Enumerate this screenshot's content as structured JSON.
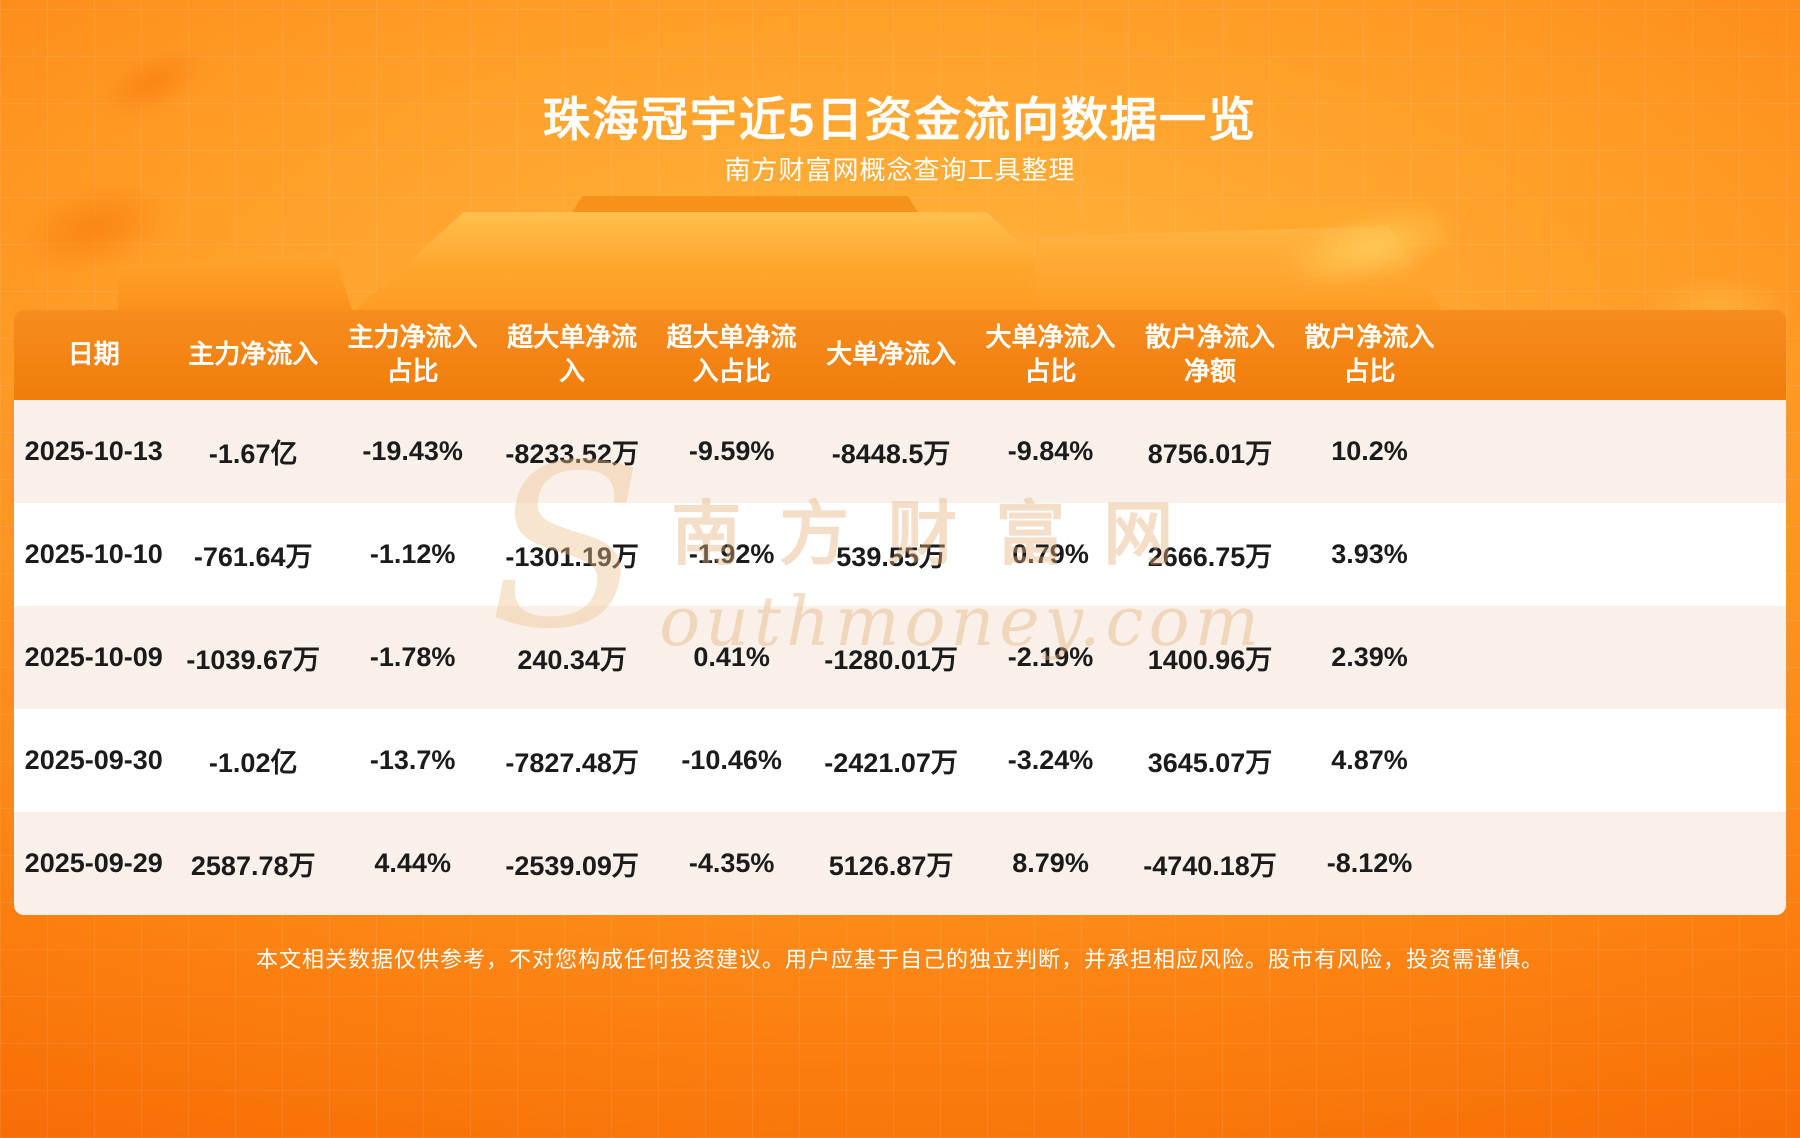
{
  "page": {
    "title": "珠海冠宇近5日资金流向数据一览",
    "subtitle": "南方财富网概念查询工具整理",
    "disclaimer": "本文相关数据仅供参考，不对您构成任何投资建议。用户应基于自己的独立判断，并承担相应风险。股市有风险，投资需谨慎。",
    "watermark": {
      "initial": "S",
      "cn": "南方财富网",
      "en": "outhmoney.com"
    }
  },
  "colors": {
    "background_orange": "#fb7e0f",
    "background_deep_orange": "#f25c00",
    "podium_orange": "#ffa52d",
    "header_orange": "#f28212",
    "row_cream": "#f9f1e9",
    "row_white": "#ffffff",
    "text_dark": "#1b1b1b",
    "text_white": "#ffffff",
    "watermark_tan": "#e4b07c"
  },
  "chart_data": {
    "type": "table",
    "title": "珠海冠宇近5日资金流向数据一览",
    "columns": [
      "日期",
      "主力净流入",
      "主力净流入占比",
      "超大单净流入",
      "超大单净流入占比",
      "大单净流入",
      "大单净流入占比",
      "散户净流入净额",
      "散户净流入占比"
    ],
    "rows": [
      [
        "2025-10-13",
        "-1.67亿",
        "-19.43%",
        "-8233.52万",
        "-9.59%",
        "-8448.5万",
        "-9.84%",
        "8756.01万",
        "10.2%"
      ],
      [
        "2025-10-10",
        "-761.64万",
        "-1.12%",
        "-1301.19万",
        "-1.92%",
        "539.55万",
        "0.79%",
        "2666.75万",
        "3.93%"
      ],
      [
        "2025-10-09",
        "-1039.67万",
        "-1.78%",
        "240.34万",
        "0.41%",
        "-1280.01万",
        "-2.19%",
        "1400.96万",
        "2.39%"
      ],
      [
        "2025-09-30",
        "-1.02亿",
        "-13.7%",
        "-7827.48万",
        "-10.46%",
        "-2421.07万",
        "-3.24%",
        "3645.07万",
        "4.87%"
      ],
      [
        "2025-09-29",
        "2587.78万",
        "4.44%",
        "-2539.09万",
        "-4.35%",
        "5126.87万",
        "8.79%",
        "-4740.18万",
        "-8.12%"
      ]
    ]
  }
}
